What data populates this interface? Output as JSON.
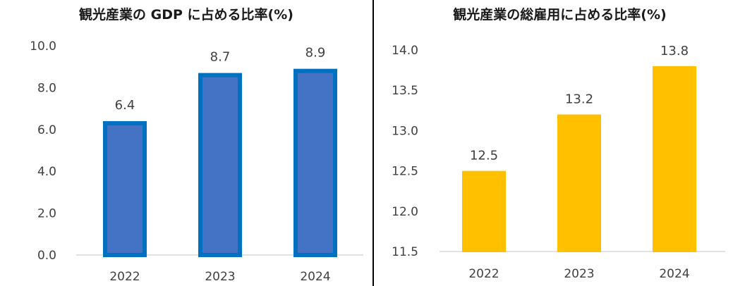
{
  "chart_data": [
    {
      "type": "bar",
      "title": "観光産業の GDP に占める比率(%)",
      "categories": [
        "2022",
        "2023",
        "2024"
      ],
      "values": [
        6.4,
        8.7,
        8.9
      ],
      "data_labels": [
        "6.4",
        "8.7",
        "8.9"
      ],
      "yticks": [
        "0.0",
        "2.0",
        "4.0",
        "6.0",
        "8.0",
        "10.0"
      ],
      "ylim": [
        0,
        10
      ],
      "grid": false,
      "colors": {
        "fill": "#4472C4",
        "border": "#0070C0"
      }
    },
    {
      "type": "bar",
      "title": "観光産業の総雇用に占める比率(%)",
      "categories": [
        "2022",
        "2023",
        "2024"
      ],
      "values": [
        12.5,
        13.2,
        13.8
      ],
      "data_labels": [
        "12.5",
        "13.2",
        "13.8"
      ],
      "yticks": [
        "11.5",
        "12.0",
        "12.5",
        "13.0",
        "13.5",
        "14.0"
      ],
      "ylim": [
        11.5,
        14.0
      ],
      "grid": false,
      "colors": {
        "fill": "#FFC000",
        "border": "#FFC000"
      }
    }
  ]
}
